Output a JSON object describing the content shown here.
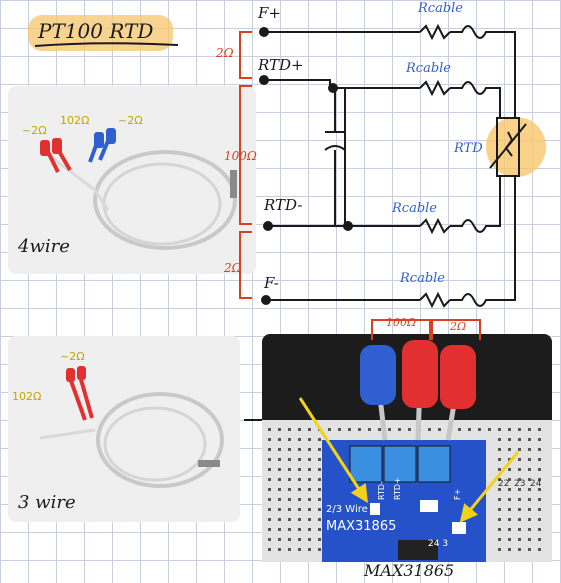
{
  "title": "PT100  RTD",
  "terminals": {
    "f_plus": "F+",
    "rtd_plus": "RTD+",
    "rtd_minus": "RTD-",
    "f_minus": "F-"
  },
  "cable_label": "Rcable",
  "resistor_label": "RTD",
  "resistance_labels": {
    "top_lead": "2Ω",
    "sensor": "100Ω",
    "bottom_lead": "2Ω"
  },
  "photo_4wire": {
    "caption": "4wire",
    "labels": {
      "left": "~2Ω",
      "middle": "102Ω",
      "right": "~2Ω"
    }
  },
  "photo_3wire": {
    "caption": "3 wire",
    "labels": {
      "top": "~2Ω",
      "left": "102Ω"
    }
  },
  "board_photo": {
    "top_labels": {
      "left": "100Ω",
      "right": "2Ω"
    },
    "silkscreen": {
      "wire_select": "2/3 Wire",
      "chip": "MAX31865",
      "pins": [
        "RTD-",
        "RTD+",
        "F+"
      ],
      "jumper": "24  3",
      "columns": [
        "22",
        "23",
        "24"
      ]
    },
    "caption": "MAX31865"
  },
  "colors": {
    "ink": "#1a1a1a",
    "annotation": "#d8401f",
    "cable_blue": "#2f5fd0",
    "highlighter": "#f7c56b",
    "arrow": "#f2d21b"
  }
}
